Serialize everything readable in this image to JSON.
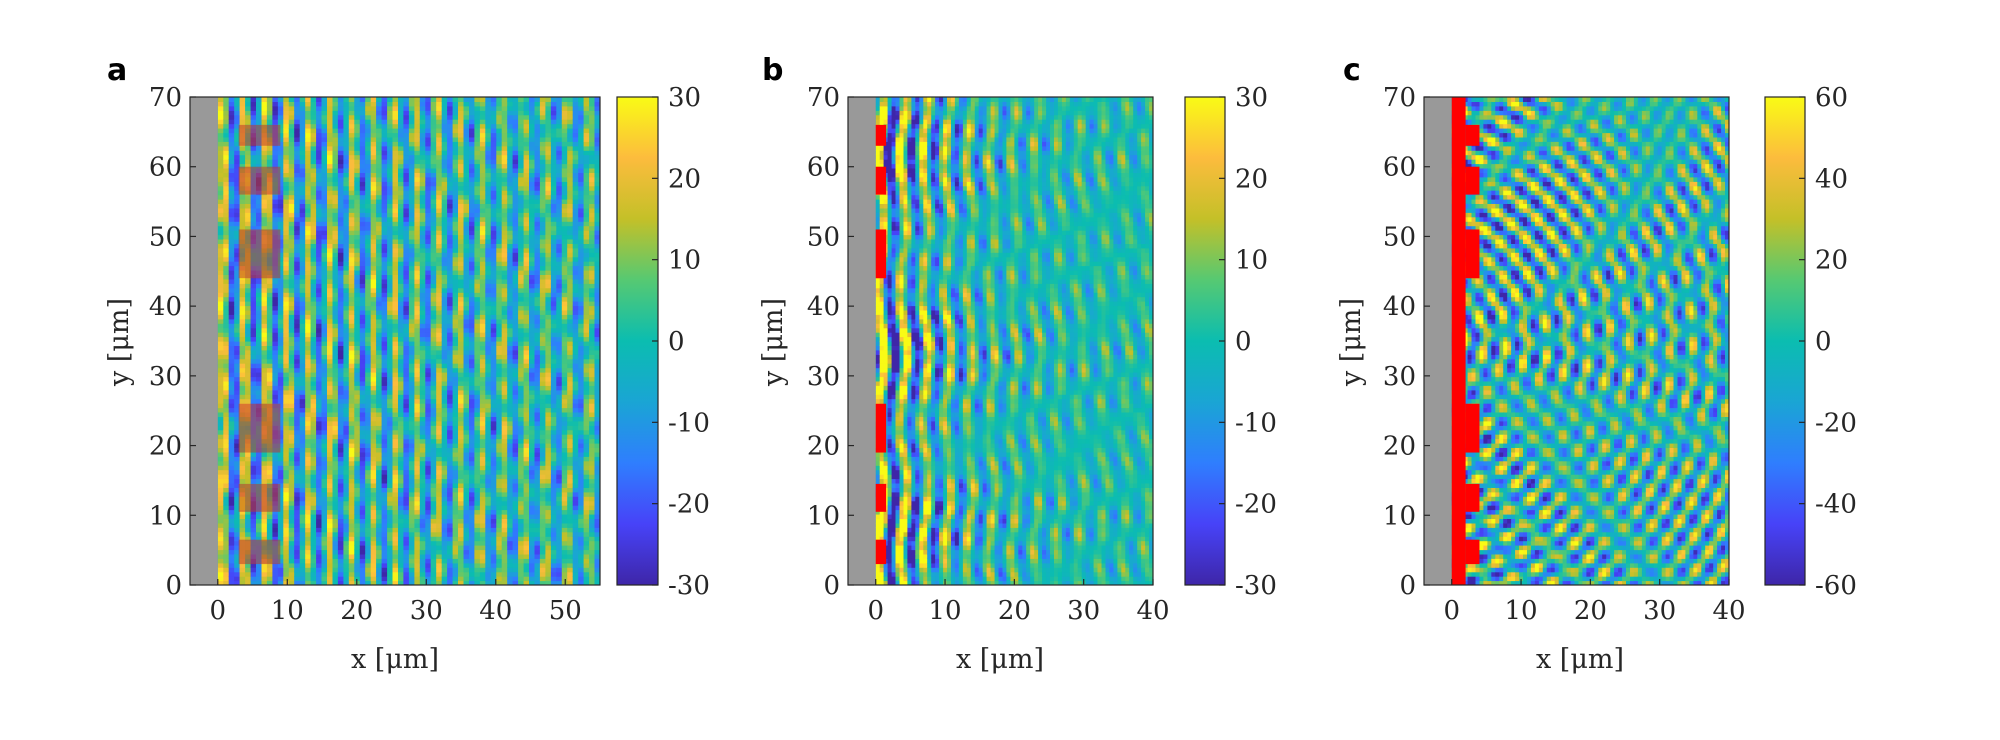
{
  "figure": {
    "colormap": [
      "#3e26a8",
      "#4743f8",
      "#2f7efe",
      "#1aa5d4",
      "#0bbdb0",
      "#56c972",
      "#c4c028",
      "#fcbc3d",
      "#f9fb15"
    ],
    "substrate_color": "#999999",
    "highlight_color": "#ff0000"
  },
  "chart_data": [
    {
      "type": "heatmap",
      "panel_label": "a",
      "xlabel": "x [μm]",
      "ylabel": "y [μm]",
      "xlim": [
        -4,
        55
      ],
      "ylim": [
        0,
        70
      ],
      "xticks": [
        0,
        10,
        20,
        30,
        40,
        50
      ],
      "yticks": [
        0,
        10,
        20,
        30,
        40,
        50,
        60,
        70
      ],
      "clim": [
        -30,
        30
      ],
      "cticks": [
        30,
        20,
        10,
        0,
        -10,
        -20,
        -30
      ],
      "substrate_x": [
        -4,
        0
      ],
      "scatterer_style": "translucent",
      "scatterers": [
        {
          "x": [
            3,
            9
          ],
          "y": [
            3,
            6.5
          ]
        },
        {
          "x": [
            3,
            9
          ],
          "y": [
            10.5,
            14.5
          ]
        },
        {
          "x": [
            3,
            9
          ],
          "y": [
            19,
            26
          ]
        },
        {
          "x": [
            3,
            9
          ],
          "y": [
            44,
            51
          ]
        },
        {
          "x": [
            3,
            9
          ],
          "y": [
            56,
            60
          ]
        },
        {
          "x": [
            3,
            9
          ],
          "y": [
            63,
            66
          ]
        }
      ],
      "field_pattern": "periodic wave fringes (period ~3 μm in x) with amplitude decaying from the scatterer line"
    },
    {
      "type": "heatmap",
      "panel_label": "b",
      "xlabel": "x [μm]",
      "ylabel": "y [μm]",
      "xlim": [
        -4,
        40
      ],
      "ylim": [
        0,
        70
      ],
      "xticks": [
        0,
        10,
        20,
        30,
        40
      ],
      "yticks": [
        0,
        10,
        20,
        30,
        40,
        50,
        60,
        70
      ],
      "clim": [
        -30,
        30
      ],
      "cticks": [
        30,
        20,
        10,
        0,
        -10,
        -20,
        -30
      ],
      "substrate_x": [
        -4,
        0
      ],
      "scatterer_style": "solid",
      "scatterers": [
        {
          "x": [
            0,
            1.5
          ],
          "y": [
            3,
            6.5
          ]
        },
        {
          "x": [
            0,
            1.5
          ],
          "y": [
            10.5,
            14.5
          ]
        },
        {
          "x": [
            0,
            1.5
          ],
          "y": [
            19,
            26
          ]
        },
        {
          "x": [
            0,
            1.5
          ],
          "y": [
            44,
            51
          ]
        },
        {
          "x": [
            0,
            1.5
          ],
          "y": [
            56,
            60
          ]
        },
        {
          "x": [
            0,
            1.5
          ],
          "y": [
            63,
            66
          ]
        }
      ],
      "field_pattern": "strong saturated lobes near the edge at y ≈ 2-15, 28-40 and 55-70 μm, decaying to weak fringes"
    },
    {
      "type": "heatmap",
      "panel_label": "c",
      "xlabel": "x [μm]",
      "ylabel": "y [μm]",
      "xlim": [
        -4,
        40
      ],
      "ylim": [
        0,
        70
      ],
      "xticks": [
        0,
        10,
        20,
        30,
        40
      ],
      "yticks": [
        0,
        10,
        20,
        30,
        40,
        50,
        60,
        70
      ],
      "clim": [
        -60,
        60
      ],
      "cticks": [
        60,
        40,
        20,
        0,
        -20,
        -40,
        -60
      ],
      "substrate_x": [
        -4,
        0
      ],
      "scatterer_style": "solid",
      "edge_strip": {
        "x": [
          0,
          2
        ]
      },
      "scatterers": [
        {
          "x": [
            2,
            4
          ],
          "y": [
            3,
            6.5
          ]
        },
        {
          "x": [
            2,
            4
          ],
          "y": [
            10.5,
            14.5
          ]
        },
        {
          "x": [
            2,
            4
          ],
          "y": [
            19,
            26
          ]
        },
        {
          "x": [
            2,
            4
          ],
          "y": [
            44,
            51
          ]
        },
        {
          "x": [
            2,
            4
          ],
          "y": [
            56,
            60
          ]
        },
        {
          "x": [
            2,
            4
          ],
          "y": [
            63,
            66
          ]
        }
      ],
      "field_pattern": "speckled interference pattern with curved fringes emanating from the edge"
    }
  ]
}
